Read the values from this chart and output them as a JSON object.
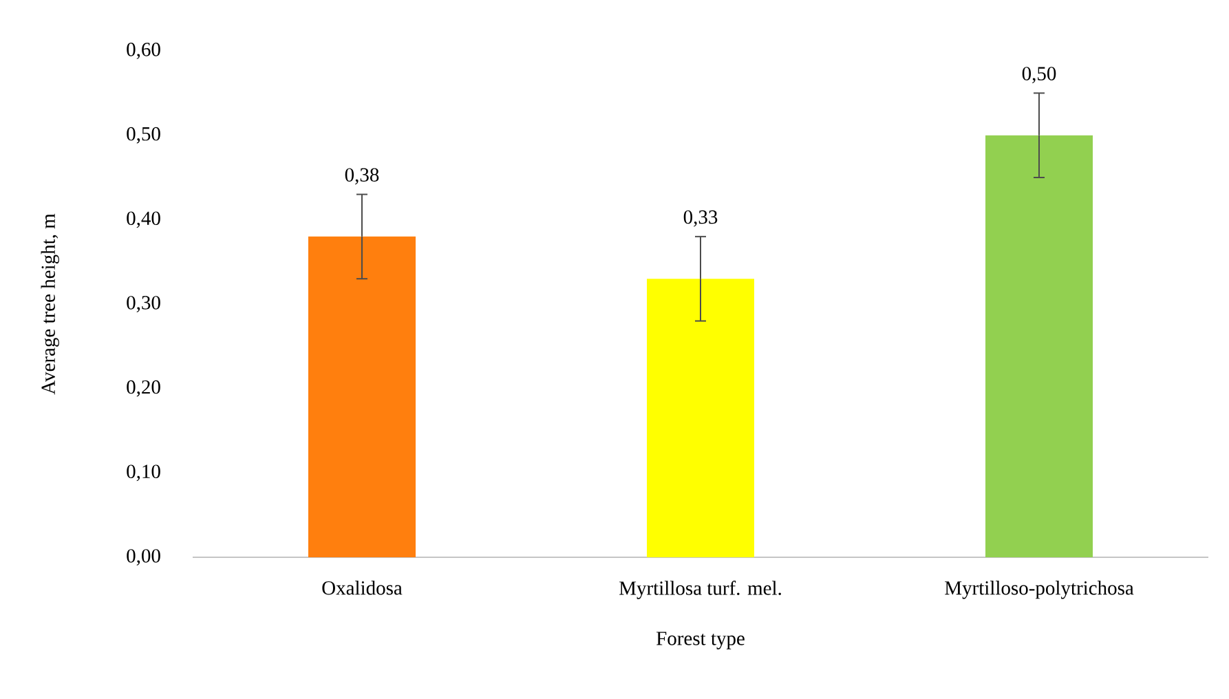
{
  "chart_data": {
    "type": "bar",
    "xlabel": "Forest type",
    "ylabel": "Average tree height, m",
    "categories": [
      "Oxalidosa",
      "Myrtillosa turf. mel.",
      "Myrtilloso-polytrichosa"
    ],
    "values": [
      0.38,
      0.33,
      0.5
    ],
    "errors": [
      0.05,
      0.05,
      0.05
    ],
    "value_labels": [
      "0,38",
      "0,33",
      "0,50"
    ],
    "colors": [
      "#ff7f0e",
      "#ffff00",
      "#92d050"
    ],
    "ylim": [
      0,
      0.6
    ],
    "yticks": [
      {
        "value": 0,
        "label": "0,00"
      },
      {
        "value": 0.1,
        "label": "0,10"
      },
      {
        "value": 0.2,
        "label": "0,20"
      },
      {
        "value": 0.3,
        "label": "0,30"
      },
      {
        "value": 0.4,
        "label": "0,40"
      },
      {
        "value": 0.5,
        "label": "0,50"
      },
      {
        "value": 0.6,
        "label": "0,60"
      }
    ],
    "grid": false
  }
}
